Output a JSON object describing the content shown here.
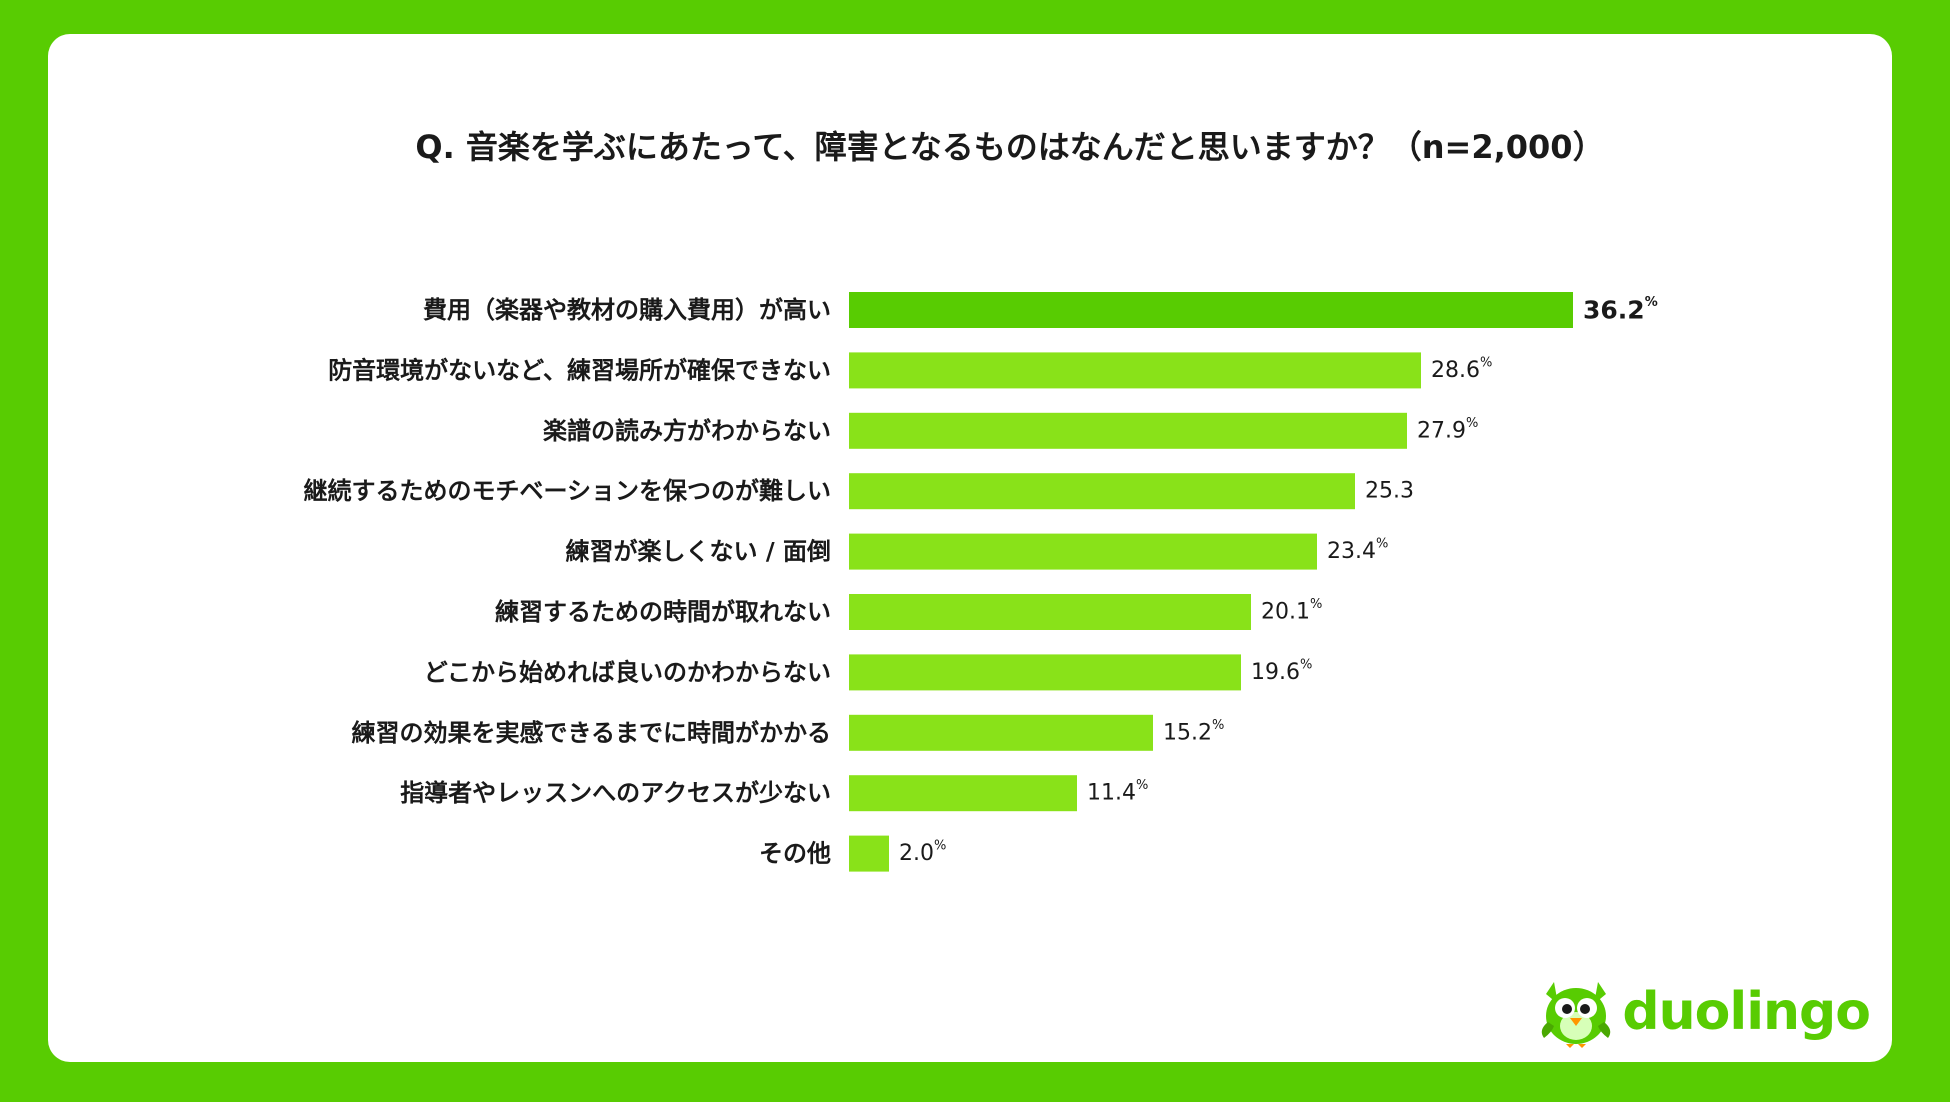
{
  "colors": {
    "frame": "#58cc02",
    "bar_top": "#58cc02",
    "bar": "#89e219",
    "text": "#1a1a1a"
  },
  "brand": {
    "name": "duolingo",
    "mascot": "owl-icon"
  },
  "chart_data": {
    "type": "bar",
    "orientation": "horizontal",
    "title": "Q. 音楽を学ぶにあたって、障害となるものはなんだと思いますか？（n=2,000）",
    "unit": "%",
    "xlim": [
      0,
      40
    ],
    "grid": false,
    "categories": [
      "費用（楽器や教材の購入費用）が高い",
      "防音環境がないなど、練習場所が確保できない",
      "楽譜の読み方がわからない",
      "継続するためのモチベーションを保つのが難しい",
      "練習が楽しくない / 面倒",
      "練習するための時間が取れない",
      "どこから始めれば良いのかわからない",
      "練習の効果を実感できるまでに時間がかかる",
      "指導者やレッスンへのアクセスが少ない",
      "その他"
    ],
    "values": [
      36.2,
      28.6,
      27.9,
      25.3,
      23.4,
      20.1,
      19.6,
      15.2,
      11.4,
      2.0
    ],
    "value_labels": [
      "36.2",
      "28.6",
      "27.9",
      "25.3",
      "23.4",
      "20.1",
      "19.6",
      "15.2",
      "11.4",
      "2.0"
    ],
    "unit_shown": [
      true,
      true,
      true,
      false,
      true,
      true,
      true,
      true,
      true,
      true
    ]
  }
}
